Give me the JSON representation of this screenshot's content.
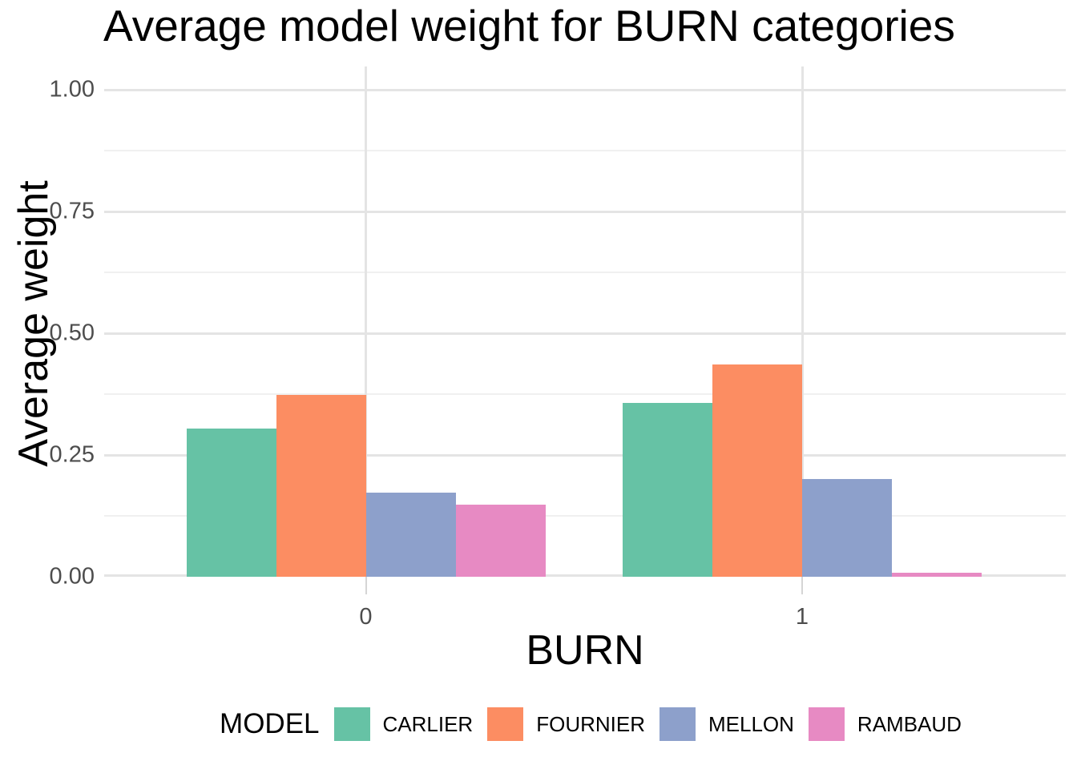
{
  "title": "Average model weight for BURN categories",
  "chart_data": {
    "type": "bar",
    "title": "Average model weight for BURN categories",
    "xlabel": "BURN",
    "ylabel": "Average weight",
    "categories": [
      "0",
      "1"
    ],
    "series": [
      {
        "name": "CARLIER",
        "color": "#66C2A5",
        "values": [
          0.305,
          0.357
        ]
      },
      {
        "name": "FOURNIER",
        "color": "#FC8D62",
        "values": [
          0.373,
          0.436
        ]
      },
      {
        "name": "MELLON",
        "color": "#8DA0CB",
        "values": [
          0.173,
          0.2
        ]
      },
      {
        "name": "RAMBAUD",
        "color": "#E78AC3",
        "values": [
          0.148,
          0.009
        ]
      }
    ],
    "ylim": [
      0,
      1
    ],
    "yticks": [
      0,
      0.25,
      0.5,
      0.75,
      1
    ],
    "ytick_labels": [
      "0.00",
      "0.25",
      "0.50",
      "0.75",
      "1.00"
    ],
    "minor_gridlines": [
      0.125,
      0.375,
      0.625,
      0.875
    ],
    "grid": true,
    "gridline_orientation": "horizontal-and-category-vertical",
    "legend_title": "MODEL",
    "legend_position": "bottom",
    "bar_grouping": "dodged"
  },
  "style_colors": {
    "background": "#ffffff",
    "major_grid": "#e4e4e4",
    "minor_grid": "#f0f0f0",
    "tick_mark": "#d5d5d5",
    "axis_text": "#4d4d4d",
    "title_text": "#000000"
  }
}
